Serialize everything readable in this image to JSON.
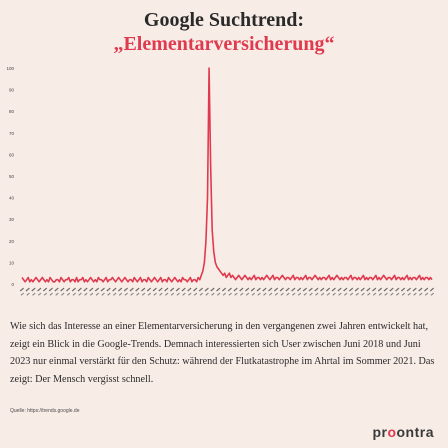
{
  "title": "Google Suchtrend:",
  "subtitle": "„Elementarversicherung“",
  "description": "Wie sich das Interesse an einer Elementarversicherung in den vergangenen zwei Jahren entwickelt hat, zeigt ein Blick in die Google-Trends. Demnach interessierten sich User zwischen Juni 2018 und Juni 2023 nur einmal verstärkt für den Schutz: während der Flutkatastrophe im Ahrtal im Sommer 2021. Das zeigt: Der Mensch vergisst schnell.",
  "source": "Quelle: https://trends.google.de",
  "logo": {
    "pre": "pr",
    "mark": "o",
    "post": "ontra"
  },
  "colors": {
    "line": "#e03a4f",
    "background": "#f8ece6",
    "text": "#2a2a2a"
  },
  "chart_data": {
    "type": "line",
    "title": "",
    "xlabel": "",
    "ylabel": "",
    "ylim": [
      0,
      100
    ],
    "yticks": [
      "0",
      "10",
      "20",
      "30",
      "40",
      "50",
      "60",
      "70",
      "80",
      "90",
      "100"
    ],
    "grid": false,
    "x_range": [
      "Juni 2018",
      "Juni 2023"
    ],
    "series": [
      {
        "values": [
          3,
          2,
          1,
          2,
          3,
          1,
          2,
          1,
          2,
          3,
          2,
          1,
          2,
          3,
          2,
          1,
          2,
          1,
          3,
          2,
          1,
          1,
          2,
          2,
          1,
          3,
          2,
          1,
          2,
          2,
          3,
          1,
          2,
          2,
          1,
          3,
          1,
          2,
          2,
          3,
          1,
          2,
          1,
          2,
          3,
          2,
          1,
          2,
          1,
          3,
          2,
          2,
          1,
          2,
          3,
          1,
          2,
          2,
          3,
          2,
          1,
          2,
          3,
          2,
          1,
          2,
          3,
          2,
          1,
          2,
          2,
          1,
          3,
          2,
          1,
          2,
          3,
          1,
          2,
          2,
          1,
          3,
          2,
          1,
          2,
          3,
          2,
          1,
          2,
          3,
          1,
          2,
          2,
          1,
          3,
          2,
          1,
          2,
          3,
          2,
          1,
          2,
          1,
          3,
          2,
          2,
          1,
          2,
          3,
          1,
          2,
          2,
          1,
          3,
          2,
          4,
          6,
          10,
          20,
          40,
          100,
          55,
          25,
          15,
          10,
          8,
          7,
          6,
          5,
          4,
          5,
          3,
          4,
          5,
          3,
          4,
          3,
          2,
          3,
          4,
          3,
          2,
          3,
          4,
          3,
          2,
          3,
          2,
          3,
          4,
          2,
          3,
          3,
          2,
          3,
          2,
          3,
          4,
          3,
          2,
          3,
          4,
          2,
          3,
          3,
          2,
          3,
          4,
          3,
          2,
          3,
          3,
          2,
          3,
          4,
          2,
          3,
          3,
          2,
          3,
          2,
          3,
          4,
          2,
          3,
          3,
          2,
          3,
          4,
          3,
          2,
          3,
          2,
          3,
          3,
          2,
          3,
          4,
          2,
          3,
          2,
          3,
          4,
          3,
          2,
          3,
          2,
          3,
          3,
          2,
          3,
          4,
          2,
          3,
          3,
          2,
          3,
          2,
          3,
          4,
          2,
          3,
          2,
          3,
          3,
          2,
          3,
          4,
          2,
          3,
          2,
          3,
          4,
          3,
          2,
          3,
          3,
          2,
          3,
          4,
          2,
          3,
          3,
          2,
          3,
          2,
          3,
          4,
          2,
          3,
          2,
          3,
          3,
          2,
          3,
          4,
          2,
          3,
          2,
          3,
          3,
          2,
          3,
          2
        ]
      }
    ]
  }
}
